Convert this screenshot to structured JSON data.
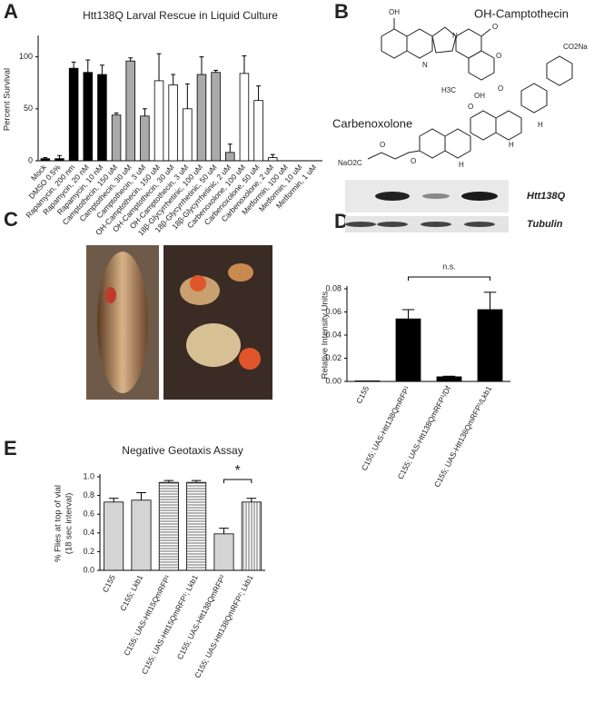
{
  "panels": [
    "A",
    "B",
    "C",
    "D",
    "E"
  ],
  "structures": [
    {
      "name": "OH-Camptothecin",
      "atoms": [
        "OH",
        "N",
        "N",
        "O",
        "O",
        "O",
        "H3C",
        "OH"
      ]
    },
    {
      "name": "Carbenoxolone",
      "atoms": [
        "CO2Na",
        "O",
        "H",
        "H",
        "H",
        "NaO2C",
        "O",
        "O"
      ]
    }
  ],
  "blot": {
    "labels": [
      "Htt138Q",
      "Tubulin"
    ]
  },
  "chart_data": [
    {
      "type": "bar",
      "title": "Htt138Q Larval Rescue in Liquid Culture",
      "y_label": [
        "Percent Survival"
      ],
      "categories": [
        "Mock",
        "DMSO 0.5%",
        "Rapamycin, 200 nm",
        "Rapamycin, 20 nM",
        "Rapamycin, 10 nM",
        "Camptothecin, 150 uM",
        "Camptothecin, 30 uM",
        "Camptothecin, 3 uM",
        "OH-Camptothecin, 150 uM",
        "OH-Camptothecin, 30 uM",
        "OH-Camptothecin, 3 uM",
        "18β-Glycyrrhetinic, 100 uM",
        "18β-Glycyrrhetinic, 50 uM",
        "18β-Glycyrrhetinic, 2 uM",
        "Carbenoxolone, 100 uM",
        "Carbenoxolone, 50 uM",
        "Carbenoxolone, 2 uM",
        "Metformin, 100 uM",
        "Metformin, 10 uM",
        "Metformin, 1 uM"
      ],
      "values": [
        2,
        2,
        89,
        85,
        83,
        44,
        96,
        43,
        77,
        73,
        50,
        83,
        85,
        8,
        84,
        58,
        3,
        0,
        0,
        0
      ],
      "errors": [
        1,
        3,
        6,
        12,
        9,
        2,
        3,
        7,
        26,
        10,
        24,
        17,
        2,
        8,
        17,
        14,
        3,
        0,
        0,
        0
      ],
      "colors": [
        "#000000",
        "#000000",
        "#000000",
        "#000000",
        "#000000",
        "#aaaaaa",
        "#aaaaaa",
        "#aaaaaa",
        "#ffffff",
        "#ffffff",
        "#ffffff",
        "#aaaaaa",
        "#aaaaaa",
        "#aaaaaa",
        "#ffffff",
        "#ffffff",
        "#ffffff",
        "#ffffff",
        "#ffffff",
        "#ffffff"
      ],
      "ylim": [
        0,
        118
      ],
      "yticks": [
        0,
        50,
        100
      ]
    },
    {
      "type": "bar",
      "y_label": [
        "Relative Intensity Units"
      ],
      "categories": [
        "C155",
        "C155; UAS-Htt138QmRFP¹",
        "C155; UAS-Htt138QmRFP¹/Df",
        "C155; UAS-Htt138QmRFP¹/Lkb1"
      ],
      "values": [
        0.0005,
        0.054,
        0.004,
        0.062
      ],
      "errors": [
        0,
        0.008,
        0.0005,
        0.015
      ],
      "colors": [
        "#000000",
        "#000000",
        "#000000",
        "#000000"
      ],
      "ylim": [
        0,
        0.08
      ],
      "yticks": [
        {
          "value": 0,
          "label": "0.00"
        },
        {
          "value": 0.02,
          "label": "0.02"
        },
        {
          "value": 0.04,
          "label": "0.04"
        },
        {
          "value": 0.06,
          "label": "0.06"
        },
        {
          "value": 0.08,
          "label": "0.08"
        }
      ],
      "annotation": "n.s."
    },
    {
      "type": "bar",
      "title": "Negative Geotaxis Assay",
      "y_label": [
        "% Flies at top of vial",
        "(18 sec interval)"
      ],
      "categories": [
        "C155",
        "C155; Lkb1",
        "C155; UAS-Htt15QmRFP¹",
        "C155; UAS-Htt15QmRFP¹; Lkb1",
        "C155; UAS-Htt138QmRFP²",
        "C155; UAS-Htt138QmRFP²; Lkb1"
      ],
      "values": [
        0.73,
        0.75,
        0.94,
        0.94,
        0.39,
        0.73
      ],
      "errors": [
        0.04,
        0.08,
        0.02,
        0.02,
        0.06,
        0.04
      ],
      "colors": [
        "#d4d4d4",
        "#d4d4d4",
        "#ffffff",
        "#ffffff",
        "#d4d4d4",
        "#ffffff"
      ],
      "patterns": [
        "solid",
        "solid",
        "hlines",
        "hlines",
        "solid",
        "vlines"
      ],
      "ylim": [
        0,
        1
      ],
      "yticks": [
        {
          "value": 0,
          "label": "0.0"
        },
        {
          "value": 0.2,
          "label": "0.2"
        },
        {
          "value": 0.4,
          "label": "0.4"
        },
        {
          "value": 0.6,
          "label": "0.6"
        },
        {
          "value": 0.8,
          "label": "0.8"
        },
        {
          "value": 1,
          "label": "1.0"
        }
      ],
      "annotation": "*"
    }
  ]
}
